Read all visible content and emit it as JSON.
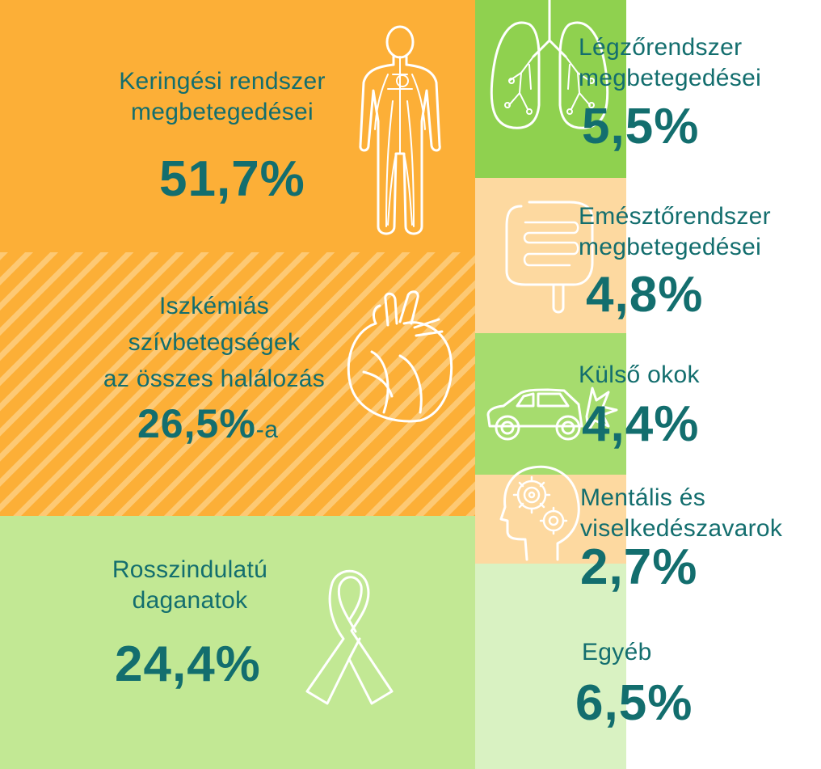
{
  "colors": {
    "orange": "#fcaf37",
    "green": "#8fd14f",
    "peach": "#fdd9a0",
    "light_green": "#a6dc6e",
    "pale_green": "#c2e894",
    "very_pale_green": "#d9f2c2",
    "text_teal": "#136e6e"
  },
  "circulatory": {
    "label_line1": "Keringési rendszer",
    "label_line2": "megbetegedései",
    "value": "51,7%",
    "icon": "human-circulatory-system-icon"
  },
  "ischemic": {
    "label_line1": "Iszkémiás",
    "label_line2": "szívbetegségek",
    "label_line3": "az összes halálozás",
    "value": "26,5%",
    "suffix": "-a",
    "icon": "heart-icon"
  },
  "cancer": {
    "label_line1": "Rosszindulatú",
    "label_line2": "daganatok",
    "value": "24,4%",
    "icon": "ribbon-icon"
  },
  "respiratory": {
    "label_line1": "Légzőrendszer",
    "label_line2": "megbetegedései",
    "value": "5,5%",
    "icon": "lungs-icon"
  },
  "digestive": {
    "label_line1": "Emésztőrendszer",
    "label_line2": "megbetegedései",
    "value": "4,8%",
    "icon": "intestines-icon"
  },
  "external": {
    "label": "Külső okok",
    "value": "4,4%",
    "icon": "car-crash-icon"
  },
  "mental": {
    "label_line1": "Mentális és",
    "label_line2": "viselkedészavarok",
    "value": "2,7%",
    "icon": "head-gears-icon"
  },
  "other": {
    "label": "Egyéb",
    "value": "6,5%"
  }
}
